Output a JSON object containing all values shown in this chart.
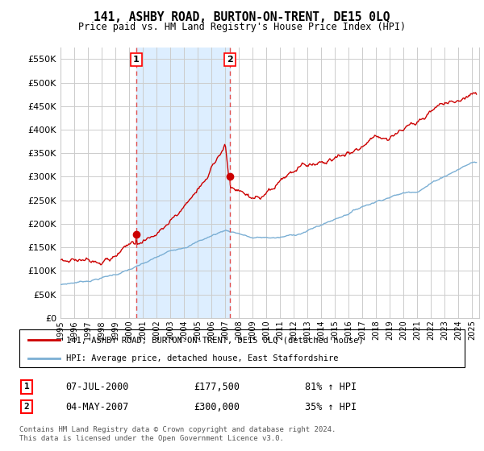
{
  "title": "141, ASHBY ROAD, BURTON-ON-TRENT, DE15 0LQ",
  "subtitle": "Price paid vs. HM Land Registry's House Price Index (HPI)",
  "ytick_vals": [
    0,
    50000,
    100000,
    150000,
    200000,
    250000,
    300000,
    350000,
    400000,
    450000,
    500000,
    550000
  ],
  "ylim": [
    0,
    575000
  ],
  "xlim_start": 1995.0,
  "xlim_end": 2025.5,
  "sale1_x": 2000.52,
  "sale1_y": 177500,
  "sale2_x": 2007.35,
  "sale2_y": 300000,
  "sale1_label": "1",
  "sale2_label": "2",
  "sale1_date": "07-JUL-2000",
  "sale1_price": "£177,500",
  "sale1_hpi": "81% ↑ HPI",
  "sale2_date": "04-MAY-2007",
  "sale2_price": "£300,000",
  "sale2_hpi": "35% ↑ HPI",
  "line1_color": "#cc0000",
  "line2_color": "#7bafd4",
  "vline_color": "#e05050",
  "shade_color": "#ddeeff",
  "grid_color": "#cccccc",
  "bg_color": "#ffffff",
  "legend1_label": "141, ASHBY ROAD, BURTON-ON-TRENT, DE15 0LQ (detached house)",
  "legend2_label": "HPI: Average price, detached house, East Staffordshire",
  "footer": "Contains HM Land Registry data © Crown copyright and database right 2024.\nThis data is licensed under the Open Government Licence v3.0.",
  "xtick_years": [
    1995,
    1996,
    1997,
    1998,
    1999,
    2000,
    2001,
    2002,
    2003,
    2004,
    2005,
    2006,
    2007,
    2008,
    2009,
    2010,
    2011,
    2012,
    2013,
    2014,
    2015,
    2016,
    2017,
    2018,
    2019,
    2020,
    2021,
    2022,
    2023,
    2024,
    2025
  ]
}
